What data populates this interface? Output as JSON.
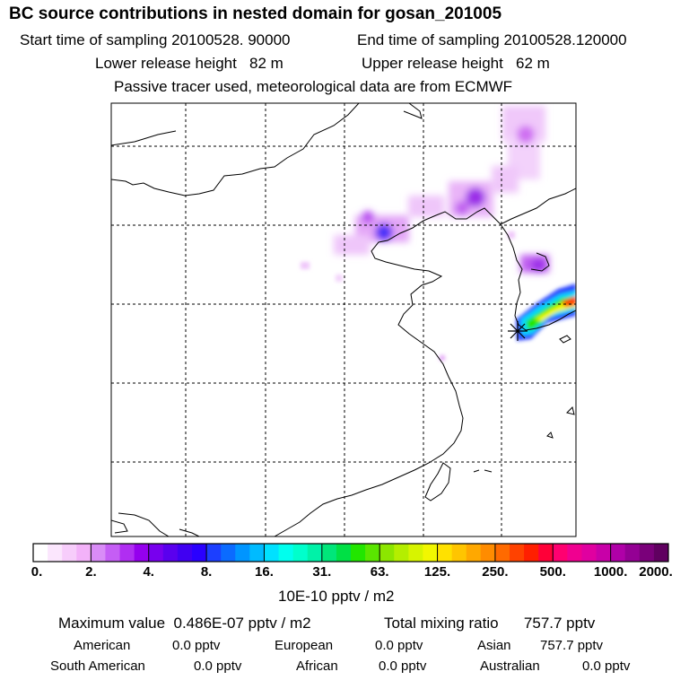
{
  "header": {
    "title": "BC  source contributions in nested domain for gosan_201005",
    "start_label": "Start time of sampling",
    "start_value": "20100528. 90000",
    "end_label": "End time of sampling",
    "end_value": "20100528.120000",
    "lower_label": "Lower release height",
    "lower_value": "82 m",
    "upper_label": "Upper release height",
    "upper_value": "62 m",
    "note": "Passive tracer used, meteorological data are from ECMWF"
  },
  "colorbar": {
    "ticks": [
      "0.",
      "2.",
      "4.",
      "8.",
      "16.",
      "31.",
      "63.",
      "125.",
      "250.",
      "500.",
      "1000.",
      "2000."
    ],
    "colors": [
      "#ffffff",
      "#fbe6fd",
      "#f7cdfb",
      "#f3b2f9",
      "#d98cf7",
      "#c55ef5",
      "#b02ef2",
      "#9500ee",
      "#7800ee",
      "#5a00ee",
      "#4000f2",
      "#2a00ff",
      "#1c3fff",
      "#0b6bff",
      "#0095ff",
      "#00bbff",
      "#00e1ff",
      "#00ffee",
      "#00ffcc",
      "#00f2a8",
      "#00e67a",
      "#00e045",
      "#22e600",
      "#5ae600",
      "#8ce600",
      "#b4ee00",
      "#d7f400",
      "#f2f700",
      "#ffe100",
      "#ffc500",
      "#ffa800",
      "#ff8c00",
      "#ff6a00",
      "#ff4200",
      "#ff1f00",
      "#ff0038",
      "#ff0070",
      "#f00090",
      "#e000a0",
      "#c800a8",
      "#b000a8",
      "#940094",
      "#7a007a",
      "#600060"
    ],
    "units": "10E-10 pptv / m2"
  },
  "summary": {
    "max_label": "Maximum value",
    "max_value": "0.486E-07 pptv / m2",
    "total_label": "Total mixing ratio",
    "total_value": "757.7 pptv",
    "regions": [
      {
        "name": "American",
        "value": "0.0 pptv"
      },
      {
        "name": "European",
        "value": "0.0 pptv"
      },
      {
        "name": "Asian",
        "value": "757.7 pptv"
      },
      {
        "name": "South American",
        "value": "0.0 pptv"
      },
      {
        "name": "African",
        "value": "0.0 pptv"
      },
      {
        "name": "Australian",
        "value": "0.0 pptv"
      }
    ]
  }
}
